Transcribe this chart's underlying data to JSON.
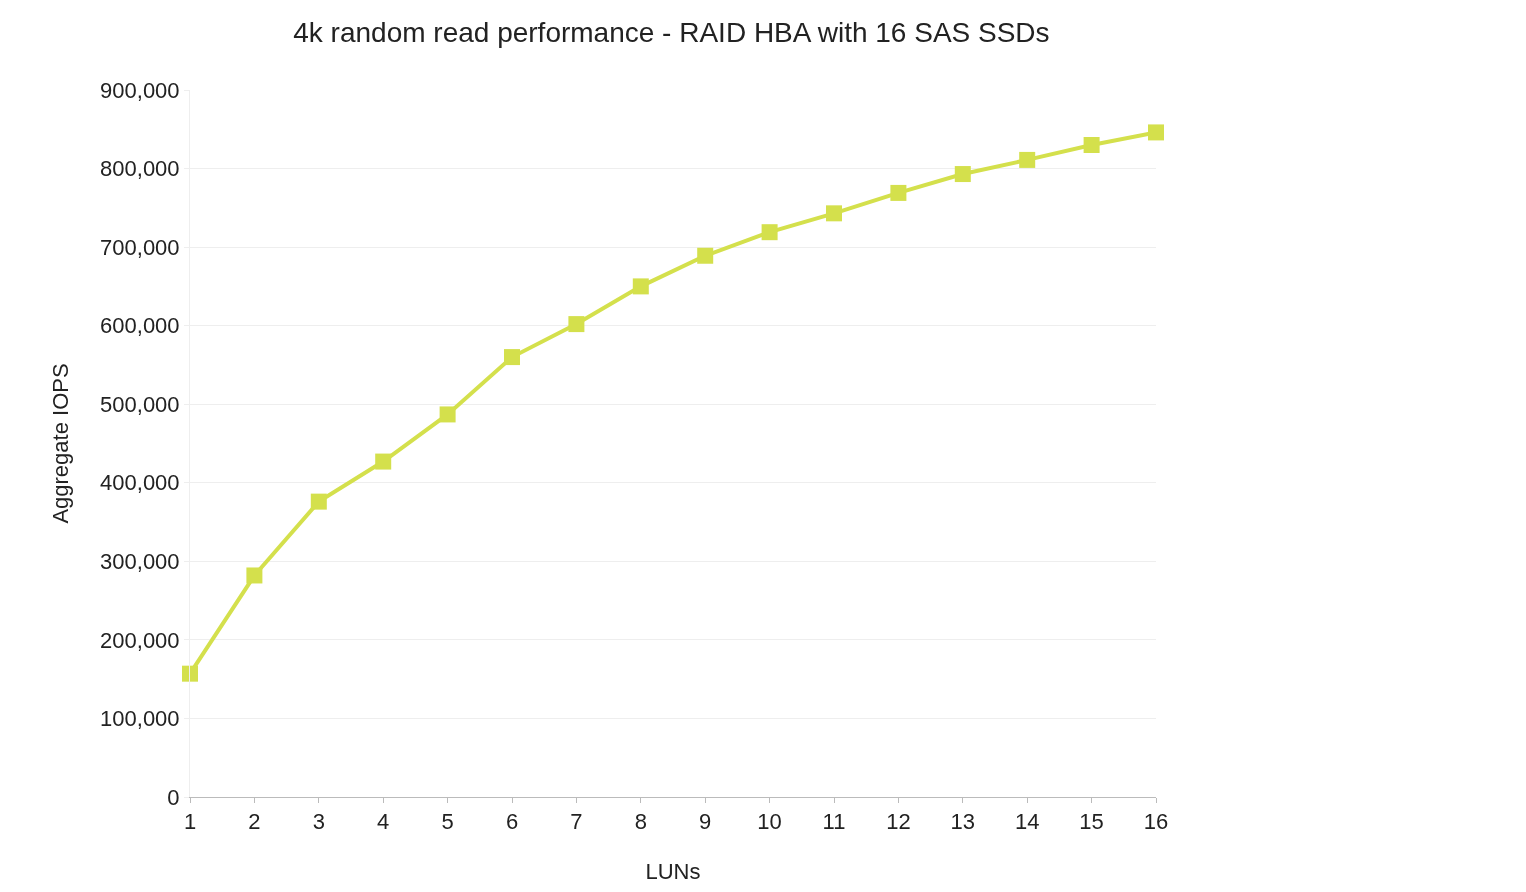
{
  "chart_data": {
    "type": "line",
    "title": "4k random read performance - RAID HBA with 16 SAS SSDs",
    "xlabel": "LUNs",
    "ylabel": "Aggregate IOPS",
    "x": [
      1,
      2,
      3,
      4,
      5,
      6,
      7,
      8,
      9,
      10,
      11,
      12,
      13,
      14,
      15,
      16
    ],
    "series": [
      {
        "color": "#d4e04c",
        "values": [
          157000,
          282000,
          376000,
          427000,
          487000,
          560000,
          602000,
          650000,
          689000,
          719000,
          743000,
          769000,
          793000,
          811000,
          830000,
          846000
        ]
      }
    ],
    "xlim": [
      1,
      16
    ],
    "xticks": [
      1,
      2,
      3,
      4,
      5,
      6,
      7,
      8,
      9,
      10,
      11,
      12,
      13,
      14,
      15,
      16
    ],
    "ylim": [
      0,
      900000
    ],
    "yticks": [
      {
        "value": 0,
        "label": "0"
      },
      {
        "value": 100000,
        "label": "100,000"
      },
      {
        "value": 200000,
        "label": "200,000"
      },
      {
        "value": 300000,
        "label": "300,000"
      },
      {
        "value": 400000,
        "label": "400,000"
      },
      {
        "value": 500000,
        "label": "500,000"
      },
      {
        "value": 600000,
        "label": "600,000"
      },
      {
        "value": 700000,
        "label": "700,000"
      },
      {
        "value": 800000,
        "label": "800,000"
      },
      {
        "value": 900000,
        "label": "900,000"
      }
    ],
    "grid": "y",
    "marker": "square",
    "line_style": "solid"
  }
}
